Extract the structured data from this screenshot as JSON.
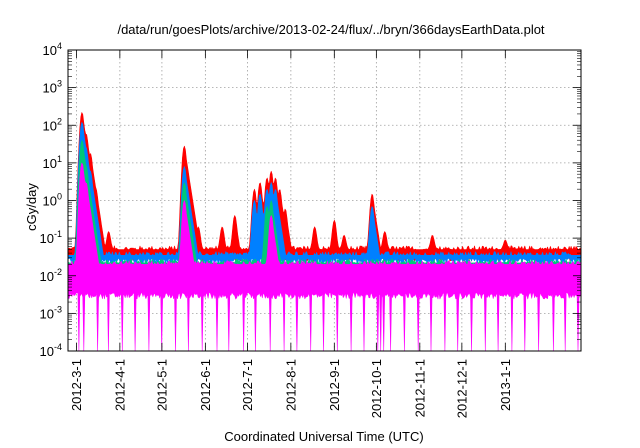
{
  "chart_data": {
    "type": "area",
    "title": "/data/run/goesPlots/archive/2013-02-24/flux/../bryn/366daysEarthData.plot",
    "xlabel": "Coordinated Universal Time (UTC)",
    "ylabel": "cGy/day",
    "yscale": "log",
    "ylim": [
      0.0001,
      10000
    ],
    "xlim": [
      "2012-02-24",
      "2013-02-24"
    ],
    "grid": true,
    "legend": "none",
    "y_ticks": [
      {
        "value": 0.0001,
        "base": "10",
        "exp": "-4"
      },
      {
        "value": 0.001,
        "base": "10",
        "exp": "-3"
      },
      {
        "value": 0.01,
        "base": "10",
        "exp": "-2"
      },
      {
        "value": 0.1,
        "base": "10",
        "exp": "-1"
      },
      {
        "value": 1,
        "base": "10",
        "exp": "0"
      },
      {
        "value": 10,
        "base": "10",
        "exp": "1"
      },
      {
        "value": 100,
        "base": "10",
        "exp": "2"
      },
      {
        "value": 1000,
        "base": "10",
        "exp": "3"
      },
      {
        "value": 10000,
        "base": "10",
        "exp": "4"
      }
    ],
    "x_ticks": [
      "2012-3-1",
      "2012-4-1",
      "2012-5-1",
      "2012-6-1",
      "2012-7-1",
      "2012-8-1",
      "2012-9-1",
      "2012-10-1",
      "2012-11-1",
      "2012-12-1",
      "2013-1-1"
    ],
    "series": [
      {
        "color": "#ff0000",
        "baseline": 0.05,
        "low": 0.03,
        "spikes": [
          {
            "date": "2012-03-05",
            "value": 220
          },
          {
            "date": "2012-03-08",
            "value": 60
          },
          {
            "date": "2012-03-11",
            "value": 18
          },
          {
            "date": "2012-03-15",
            "value": 2
          },
          {
            "date": "2012-03-24",
            "value": 0.15
          },
          {
            "date": "2012-05-17",
            "value": 28
          },
          {
            "date": "2012-05-27",
            "value": 0.2
          },
          {
            "date": "2012-06-13",
            "value": 0.2
          },
          {
            "date": "2012-06-22",
            "value": 0.4
          },
          {
            "date": "2012-07-06",
            "value": 2
          },
          {
            "date": "2012-07-10",
            "value": 3
          },
          {
            "date": "2012-07-15",
            "value": 4
          },
          {
            "date": "2012-07-18",
            "value": 6
          },
          {
            "date": "2012-07-21",
            "value": 4
          },
          {
            "date": "2012-07-24",
            "value": 2
          },
          {
            "date": "2012-07-28",
            "value": 0.6
          },
          {
            "date": "2012-08-18",
            "value": 0.2
          },
          {
            "date": "2012-09-01",
            "value": 0.3
          },
          {
            "date": "2012-09-08",
            "value": 0.12
          },
          {
            "date": "2012-09-28",
            "value": 1.5
          },
          {
            "date": "2012-10-07",
            "value": 0.15
          },
          {
            "date": "2012-11-10",
            "value": 0.12
          },
          {
            "date": "2013-01-01",
            "value": 0.09
          }
        ]
      },
      {
        "color": "#0080ff",
        "baseline": 0.035,
        "low": 0.025,
        "spikes": [
          {
            "date": "2012-03-05",
            "value": 120
          },
          {
            "date": "2012-03-08",
            "value": 25
          },
          {
            "date": "2012-03-11",
            "value": 6
          },
          {
            "date": "2012-05-17",
            "value": 8
          },
          {
            "date": "2012-07-06",
            "value": 1
          },
          {
            "date": "2012-07-10",
            "value": 1.5
          },
          {
            "date": "2012-07-15",
            "value": 2
          },
          {
            "date": "2012-07-18",
            "value": 3
          },
          {
            "date": "2012-07-21",
            "value": 2
          },
          {
            "date": "2012-09-28",
            "value": 0.7
          }
        ]
      },
      {
        "color": "#00c878",
        "baseline": 0.022,
        "low": 0.015,
        "spikes": [
          {
            "date": "2012-03-05",
            "value": 40
          },
          {
            "date": "2012-03-08",
            "value": 8
          },
          {
            "date": "2012-05-17",
            "value": 3
          },
          {
            "date": "2012-07-18",
            "value": 1
          },
          {
            "date": "2012-07-15",
            "value": 0.7
          }
        ]
      },
      {
        "color": "#ff00ff",
        "baseline": 0.02,
        "low": 0.003,
        "spikes": [
          {
            "date": "2012-03-05",
            "value": 10
          },
          {
            "date": "2012-03-08",
            "value": 3
          },
          {
            "date": "2012-05-17",
            "value": 1
          },
          {
            "date": "2012-07-18",
            "value": 0.4
          }
        ],
        "dropouts": [
          "2012-03-03",
          "2012-03-06",
          "2012-03-16",
          "2012-03-24",
          "2012-04-03",
          "2012-04-12",
          "2012-04-22",
          "2012-05-01",
          "2012-05-11",
          "2012-05-20",
          "2012-05-30",
          "2012-06-09",
          "2012-06-18",
          "2012-06-28",
          "2012-07-07",
          "2012-07-17",
          "2012-07-27",
          "2012-08-05",
          "2012-08-15",
          "2012-08-24",
          "2012-09-03",
          "2012-09-13",
          "2012-09-22",
          "2012-10-02",
          "2012-10-04",
          "2012-10-06",
          "2012-10-11",
          "2012-10-21",
          "2012-10-31",
          "2012-11-09",
          "2012-11-19",
          "2012-11-28",
          "2012-12-08",
          "2012-12-18",
          "2012-12-27",
          "2013-01-06",
          "2013-01-15",
          "2013-01-25",
          "2013-02-04",
          "2013-02-13",
          "2013-02-22"
        ]
      }
    ]
  }
}
